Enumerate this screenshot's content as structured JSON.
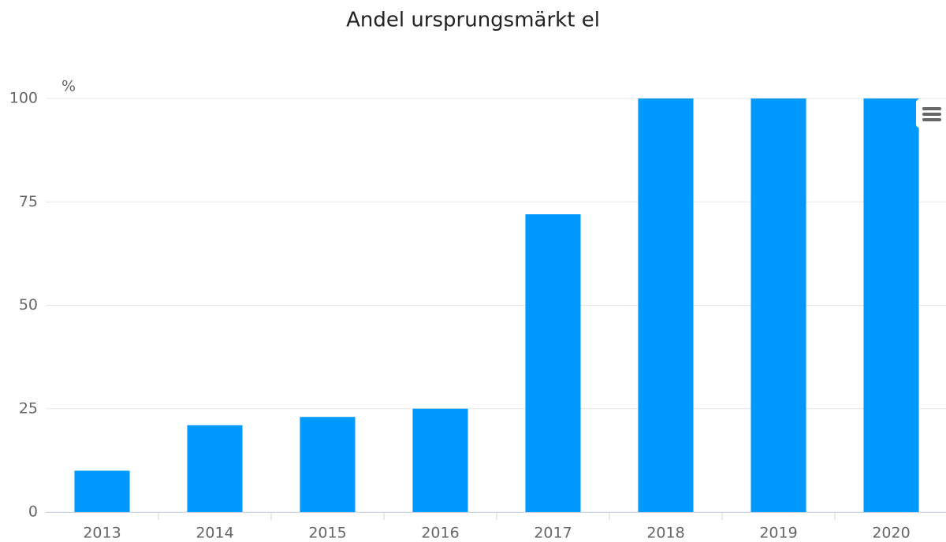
{
  "chart_data": {
    "type": "bar",
    "title": "Andel ursprungsmärkt el",
    "y_label": "%",
    "categories": [
      "2013",
      "2014",
      "2015",
      "2016",
      "2017",
      "2018",
      "2019",
      "2020"
    ],
    "values": [
      10,
      21,
      23,
      25,
      72,
      100,
      100,
      100
    ],
    "color": "#0099ff",
    "ylim": [
      0,
      100
    ],
    "yticks": [
      0,
      25,
      50,
      75,
      100
    ],
    "grid": true
  }
}
